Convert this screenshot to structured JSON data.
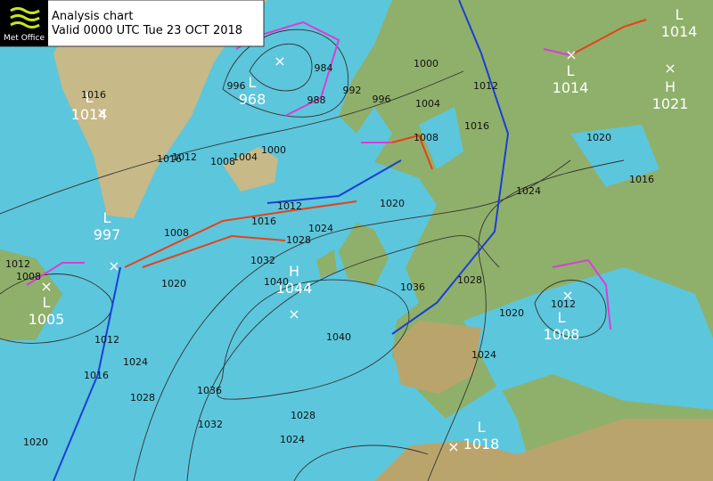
{
  "header": {
    "logo": "Met Office",
    "title": "Analysis chart",
    "valid": "Valid 0000 UTC Tue 23 OCT 2018"
  },
  "centers": [
    {
      "type": "L",
      "pressure": 1014
    },
    {
      "type": "L",
      "pressure": 968
    },
    {
      "type": "L",
      "pressure": 997
    },
    {
      "type": "L",
      "pressure": 1005
    },
    {
      "type": "H",
      "pressure": 1044
    },
    {
      "type": "L",
      "pressure": 1014
    },
    {
      "type": "L",
      "pressure": 1014
    },
    {
      "type": "H",
      "pressure": 1021
    },
    {
      "type": "L",
      "pressure": 1008
    },
    {
      "type": "L",
      "pressure": 1018
    }
  ],
  "isobar_labels": [
    1016,
    1016,
    1012,
    1008,
    1004,
    1000,
    996,
    984,
    988,
    992,
    996,
    1000,
    1004,
    1008,
    1012,
    1016,
    1020,
    1024,
    1016,
    1012,
    1016,
    1020,
    1024,
    1028,
    1032,
    1040,
    1036,
    1040,
    1028,
    1020,
    1024,
    1012,
    1020,
    1008,
    1012,
    1008,
    1012,
    1016,
    1024,
    1028,
    1036,
    1032,
    1028,
    1024,
    1020
  ]
}
